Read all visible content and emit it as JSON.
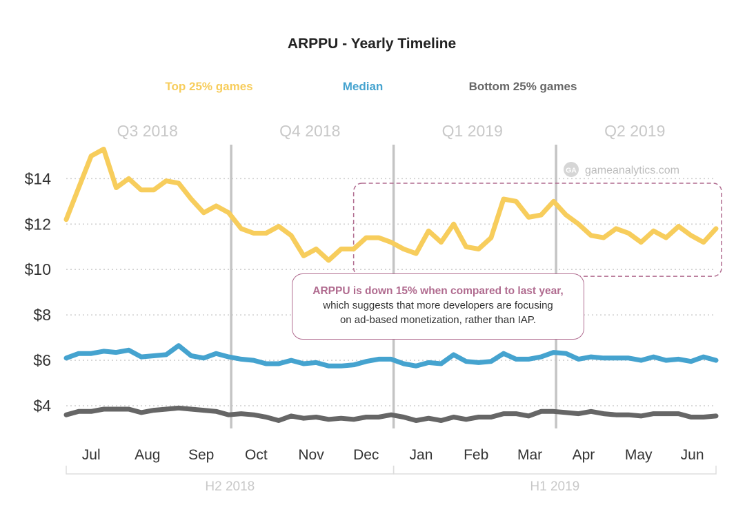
{
  "colors": {
    "top": "#f7cd5c",
    "median": "#45a3cf",
    "bottom": "#666666",
    "quarter_label": "#c8c8c8",
    "grid": "#cfcfcf",
    "divider": "#c4c4c4",
    "callout": "#b06b8f"
  },
  "watermark": {
    "icon": "ga-logo-icon",
    "text": "gameanalytics.com"
  },
  "annotation": {
    "lead": "ARPPU is down 15% when compared to last year,",
    "line2": "which suggests that more developers are focusing",
    "line3": "on ad-based monetization, rather than IAP."
  },
  "chart_data": {
    "type": "line",
    "title": "ARPPU - Yearly Timeline",
    "xlabel": "",
    "ylabel": "",
    "y_tick_labels": [
      "$4",
      "$6",
      "$8",
      "$10",
      "$12",
      "$14"
    ],
    "y_ticks": [
      4,
      6,
      8,
      10,
      12,
      14
    ],
    "ylim": [
      3,
      15.8
    ],
    "x_range_weeks": [
      0,
      52
    ],
    "months": [
      "Jul",
      "Aug",
      "Sep",
      "Oct",
      "Nov",
      "Dec",
      "Jan",
      "Feb",
      "Mar",
      "Apr",
      "May",
      "Jun"
    ],
    "month_positions_weeks": [
      2,
      6.5,
      10.8,
      15.2,
      19.6,
      24,
      28.4,
      32.8,
      37.1,
      41.4,
      45.8,
      50.1
    ],
    "quarters": [
      {
        "label": "Q3 2018",
        "center_week": 6.5
      },
      {
        "label": "Q4 2018",
        "center_week": 19.5
      },
      {
        "label": "Q1 2019",
        "center_week": 32.5
      },
      {
        "label": "Q2 2019",
        "center_week": 45.5
      }
    ],
    "quarter_dividers_weeks": [
      13.2,
      26.2,
      39.2
    ],
    "halves": [
      {
        "label": "H2 2018",
        "start_week": 0,
        "end_week": 26.2
      },
      {
        "label": "H1 2019",
        "start_week": 26.2,
        "end_week": 52
      }
    ],
    "highlight_region": {
      "start_week": 23,
      "end_week": 52,
      "y_min": 9.7,
      "y_max": 13.8
    },
    "legend": [
      "Top 25% games",
      "Median",
      "Bottom 25% games"
    ],
    "series": [
      {
        "name": "Top 25% games",
        "values": [
          12.2,
          13.6,
          15.0,
          15.3,
          13.6,
          14.0,
          13.5,
          13.5,
          13.9,
          13.8,
          13.1,
          12.5,
          12.8,
          12.5,
          11.8,
          11.6,
          11.6,
          11.9,
          11.5,
          10.6,
          10.9,
          10.4,
          10.9,
          10.9,
          11.4,
          11.4,
          11.2,
          10.9,
          10.7,
          11.7,
          11.2,
          12.0,
          11.0,
          10.9,
          11.4,
          13.1,
          13.0,
          12.3,
          12.4,
          13.0,
          12.4,
          12.0,
          11.5,
          11.4,
          11.8,
          11.6,
          11.2,
          11.7,
          11.4,
          11.9,
          11.5,
          11.2,
          11.8
        ]
      },
      {
        "name": "Median",
        "values": [
          6.1,
          6.3,
          6.3,
          6.4,
          6.35,
          6.45,
          6.15,
          6.2,
          6.25,
          6.65,
          6.2,
          6.1,
          6.3,
          6.15,
          6.05,
          6.0,
          5.85,
          5.85,
          6.0,
          5.85,
          5.9,
          5.75,
          5.75,
          5.8,
          5.95,
          6.05,
          6.05,
          5.85,
          5.75,
          5.9,
          5.85,
          6.25,
          5.95,
          5.9,
          5.95,
          6.3,
          6.05,
          6.05,
          6.15,
          6.35,
          6.3,
          6.05,
          6.15,
          6.1,
          6.1,
          6.1,
          6.0,
          6.15,
          6.0,
          6.05,
          5.95,
          6.15,
          6.0
        ]
      },
      {
        "name": "Bottom 25% games",
        "values": [
          3.6,
          3.75,
          3.75,
          3.85,
          3.85,
          3.85,
          3.7,
          3.8,
          3.85,
          3.9,
          3.85,
          3.8,
          3.75,
          3.6,
          3.65,
          3.6,
          3.5,
          3.35,
          3.55,
          3.45,
          3.5,
          3.4,
          3.45,
          3.4,
          3.5,
          3.5,
          3.6,
          3.5,
          3.35,
          3.45,
          3.35,
          3.5,
          3.4,
          3.5,
          3.5,
          3.65,
          3.65,
          3.55,
          3.75,
          3.75,
          3.7,
          3.65,
          3.75,
          3.65,
          3.6,
          3.6,
          3.55,
          3.65,
          3.65,
          3.65,
          3.5,
          3.5,
          3.55
        ]
      }
    ]
  }
}
